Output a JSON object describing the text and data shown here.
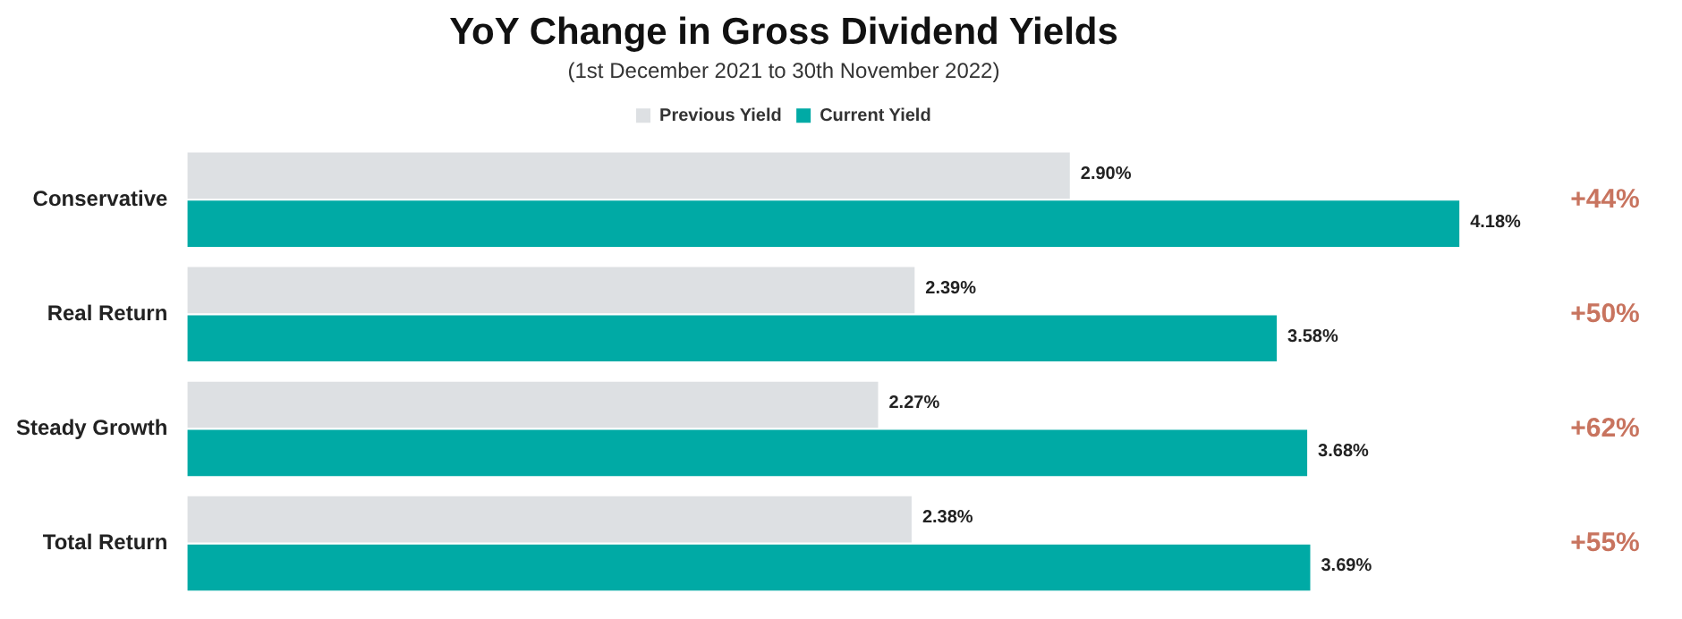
{
  "chart_data": {
    "type": "bar",
    "orientation": "horizontal",
    "title": "YoY Change in Gross Dividend Yields",
    "subtitle": "(1st December 2021 to 30th November 2022)",
    "categories": [
      "Conservative",
      "Real Return",
      "Steady Growth",
      "Total Return"
    ],
    "series": [
      {
        "name": "Previous Yield",
        "color": "#dde0e3",
        "values": [
          2.9,
          2.39,
          2.27,
          2.38
        ],
        "value_labels": [
          "2.90%",
          "2.39%",
          "2.27%",
          "2.38%"
        ]
      },
      {
        "name": "Current Yield",
        "color": "#00aaa5",
        "values": [
          4.18,
          3.58,
          3.68,
          3.69
        ],
        "value_labels": [
          "4.18%",
          "3.58%",
          "3.68%",
          "3.69%"
        ]
      }
    ],
    "annotations": [
      "+44%",
      "+50%",
      "+62%",
      "+55%"
    ],
    "legend": "top",
    "grid": false
  }
}
